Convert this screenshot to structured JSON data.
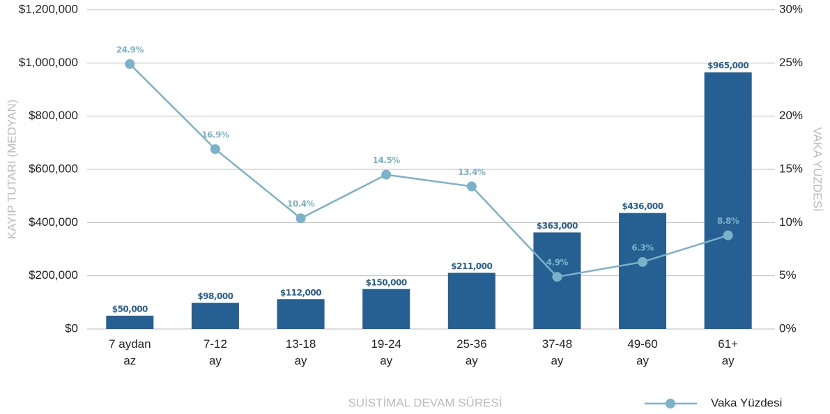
{
  "chart_data": {
    "type": "bar_line",
    "x_label": "SUİSTİMAL DEVAM SÜRESİ",
    "y_label": "KAYIP TUTARI (MEDYAN)",
    "y2_label": "VAKA YÜZDESİ",
    "categories": [
      "7 aydan\naz",
      "7-12\nay",
      "13-18\nay",
      "19-24\nay",
      "25-36\nay",
      "37-48\nay",
      "49-60\nay",
      "61+\nay"
    ],
    "series": [
      {
        "type": "bar",
        "color": "#265f91",
        "values": [
          50000,
          98000,
          112000,
          150000,
          211000,
          363000,
          436000,
          965000
        ],
        "value_labels": [
          "$50,000",
          "$98,000",
          "$112,000",
          "$150,000",
          "$211,000",
          "$363,000",
          "$436,000",
          "$965,000"
        ]
      },
      {
        "type": "line",
        "name": "Vaka Yüzdesi",
        "axis": "y2",
        "color": "#7ab3c9",
        "values": [
          24.9,
          16.9,
          10.4,
          14.5,
          13.4,
          4.9,
          6.3,
          8.8
        ],
        "value_labels": [
          "24.9%",
          "16.9%",
          "10.4%",
          "14.5%",
          "13.4%",
          "4.9%",
          "6.3%",
          "8.8%"
        ]
      }
    ],
    "ylim": [
      0,
      1200000
    ],
    "yticks": [
      {
        "value": 0,
        "label": "$0"
      },
      {
        "value": 200000,
        "label": "$200,000"
      },
      {
        "value": 400000,
        "label": "$400,000"
      },
      {
        "value": 600000,
        "label": "$600,000"
      },
      {
        "value": 800000,
        "label": "$800,000"
      },
      {
        "value": 1000000,
        "label": "$1,000,000"
      },
      {
        "value": 1200000,
        "label": "$1,200,000"
      }
    ],
    "y2lim": [
      0,
      30
    ],
    "y2ticks": [
      {
        "value": 0,
        "label": "0%"
      },
      {
        "value": 5,
        "label": "5%"
      },
      {
        "value": 10,
        "label": "10%"
      },
      {
        "value": 15,
        "label": "15%"
      },
      {
        "value": 20,
        "label": "20%"
      },
      {
        "value": 25,
        "label": "25%"
      },
      {
        "value": 30,
        "label": "30%"
      }
    ],
    "grid": true,
    "legend": "bottom-right"
  }
}
